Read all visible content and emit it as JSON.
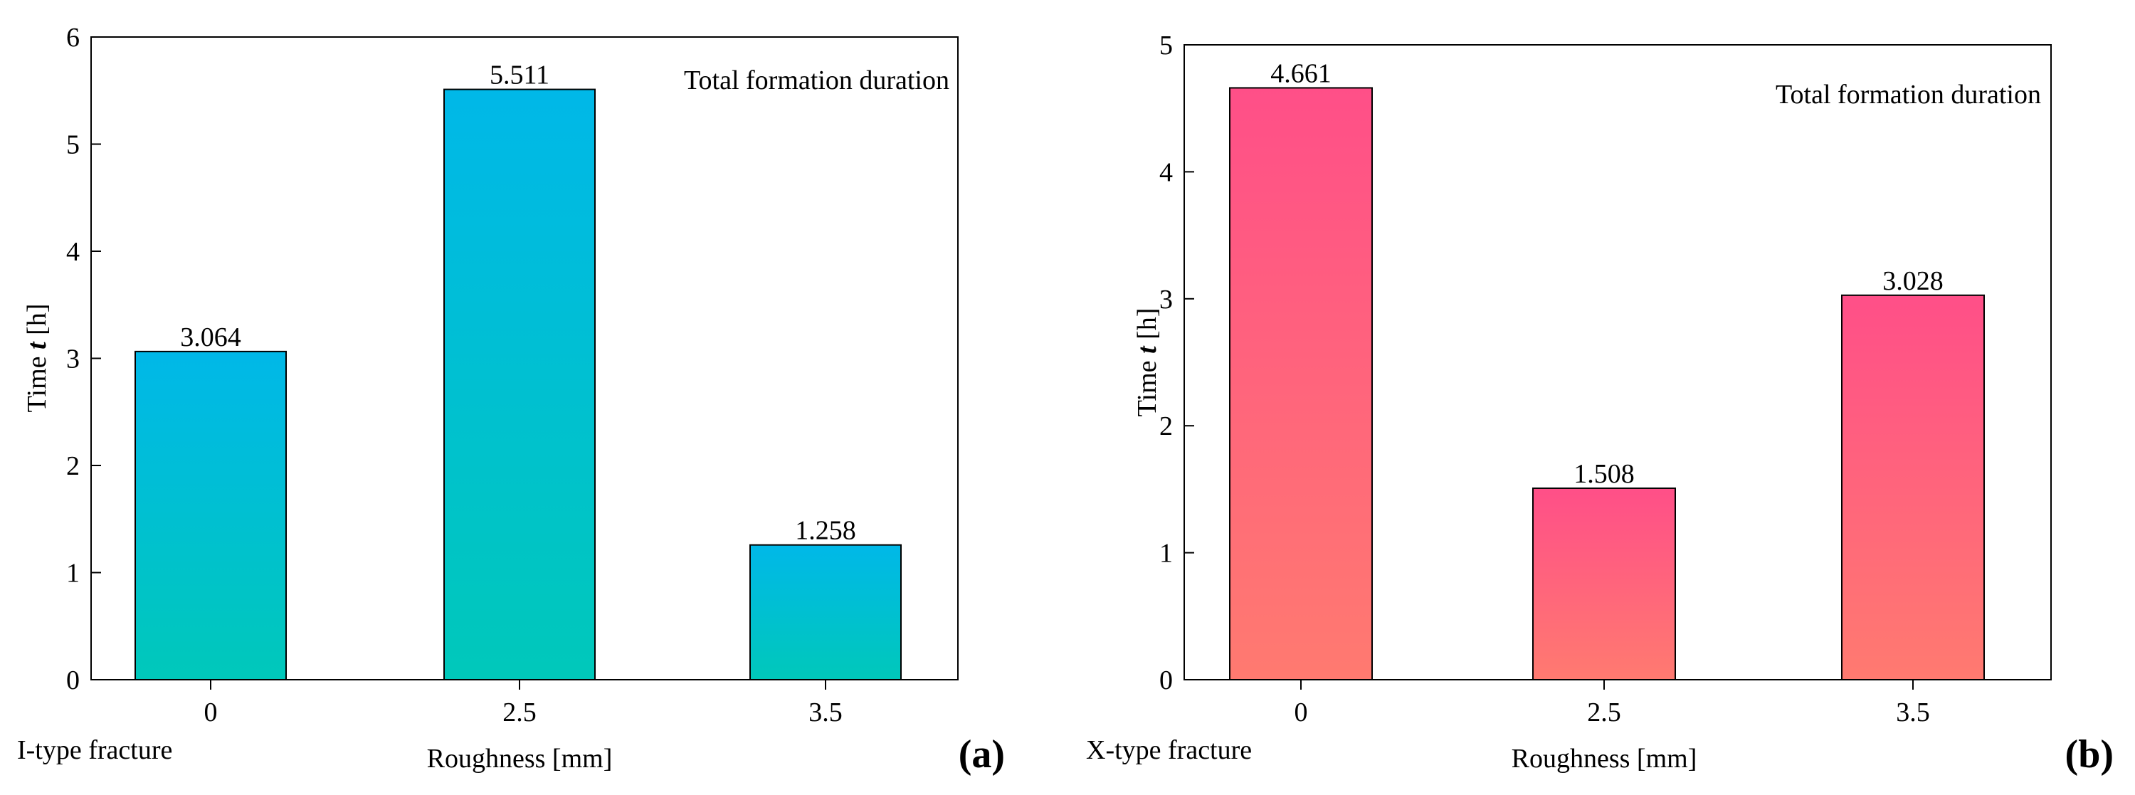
{
  "chart_data": [
    {
      "type": "bar",
      "panel_label": "(a)",
      "fracture_label": "I-type fracture",
      "annotation": "Total formation duration",
      "categories": [
        "0",
        "2.5",
        "3.5"
      ],
      "values": [
        3.064,
        5.511,
        1.258
      ],
      "value_labels": [
        "3.064",
        "5.511",
        "1.258"
      ],
      "ylabel_prefix": "Time ",
      "ylabel_var": "t",
      "ylabel_suffix": " [h]",
      "xlabel": "Roughness [mm]",
      "ylim": [
        0,
        6
      ],
      "yticks": [
        0,
        1,
        2,
        3,
        4,
        5,
        6
      ],
      "ytick_labels": [
        "0",
        "1",
        "2",
        "3",
        "4",
        "5",
        "6"
      ],
      "grid": false,
      "colors": {
        "top": "#00B8E8",
        "bottom": "#00C8BA"
      }
    },
    {
      "type": "bar",
      "panel_label": "(b)",
      "fracture_label": "X-type fracture",
      "annotation": "Total formation duration",
      "categories": [
        "0",
        "2.5",
        "3.5"
      ],
      "values": [
        4.661,
        1.508,
        3.028
      ],
      "value_labels": [
        "4.661",
        "1.508",
        "3.028"
      ],
      "ylabel_prefix": "Time ",
      "ylabel_var": "t",
      "ylabel_suffix": " [h]",
      "xlabel": "Roughness [mm]",
      "ylim": [
        0,
        5
      ],
      "yticks": [
        0,
        1,
        2,
        3,
        4,
        5
      ],
      "ytick_labels": [
        "0",
        "1",
        "2",
        "3",
        "4",
        "5"
      ],
      "grid": false,
      "colors": {
        "top": "#FF4F88",
        "bottom": "#FF7A70"
      }
    }
  ]
}
